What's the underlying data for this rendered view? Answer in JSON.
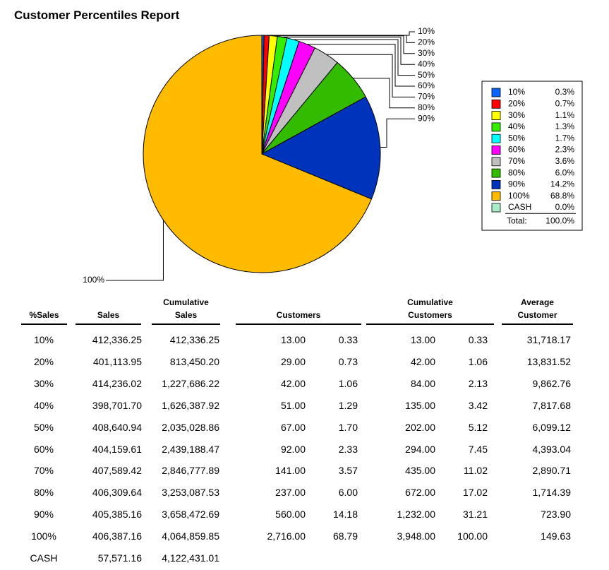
{
  "title": "Customer Percentiles Report",
  "chart_data": {
    "type": "pie",
    "categories": [
      "10%",
      "20%",
      "30%",
      "40%",
      "50%",
      "60%",
      "70%",
      "80%",
      "90%",
      "100%",
      "CASH"
    ],
    "values": [
      0.3,
      0.7,
      1.1,
      1.3,
      1.7,
      2.3,
      3.6,
      6.0,
      14.2,
      68.8,
      0.0
    ],
    "value_labels": [
      "0.3%",
      "0.7%",
      "1.1%",
      "1.3%",
      "1.7%",
      "2.3%",
      "3.6%",
      "6.0%",
      "14.2%",
      "68.8%",
      "0.0%"
    ],
    "colors": [
      "#0a64ff",
      "#ff0000",
      "#ffff00",
      "#33ee00",
      "#00ffff",
      "#ff00ff",
      "#c0c0c0",
      "#33bb00",
      "#0033bb",
      "#ffbb00",
      "#a8ecc8"
    ],
    "total": {
      "label": "Total:",
      "value": 100.0,
      "value_label": "100.0%"
    }
  },
  "table": {
    "headers": [
      "%Sales",
      "Sales",
      "Cumulative Sales",
      "Customers",
      "Cumulative Customers",
      "Average Customer"
    ],
    "rows": [
      [
        "10%",
        "412,336.25",
        "412,336.25",
        "13.00",
        "0.33",
        "13.00",
        "0.33",
        "31,718.17"
      ],
      [
        "20%",
        "401,113.95",
        "813,450.20",
        "29.00",
        "0.73",
        "42.00",
        "1.06",
        "13,831.52"
      ],
      [
        "30%",
        "414,236.02",
        "1,227,686.22",
        "42.00",
        "1.06",
        "84.00",
        "2.13",
        "9,862.76"
      ],
      [
        "40%",
        "398,701.70",
        "1,626,387.92",
        "51.00",
        "1.29",
        "135.00",
        "3.42",
        "7,817.68"
      ],
      [
        "50%",
        "408,640.94",
        "2,035,028.86",
        "67.00",
        "1.70",
        "202.00",
        "5.12",
        "6,099.12"
      ],
      [
        "60%",
        "404,159.61",
        "2,439,188.47",
        "92.00",
        "2.33",
        "294.00",
        "7.45",
        "4,393.04"
      ],
      [
        "70%",
        "407,589.42",
        "2,846,777.89",
        "141.00",
        "3.57",
        "435.00",
        "11.02",
        "2,890.71"
      ],
      [
        "80%",
        "406,309.64",
        "3,253,087.53",
        "237.00",
        "6.00",
        "672.00",
        "17.02",
        "1,714.39"
      ],
      [
        "90%",
        "405,385.16",
        "3,658,472.69",
        "560.00",
        "14.18",
        "1,232.00",
        "31.21",
        "723.90"
      ],
      [
        "100%",
        "406,387.16",
        "4,064,859.85",
        "2,716.00",
        "68.79",
        "3,948.00",
        "100.00",
        "149.63"
      ],
      [
        "CASH",
        "57,571.16",
        "4,122,431.01"
      ]
    ]
  }
}
